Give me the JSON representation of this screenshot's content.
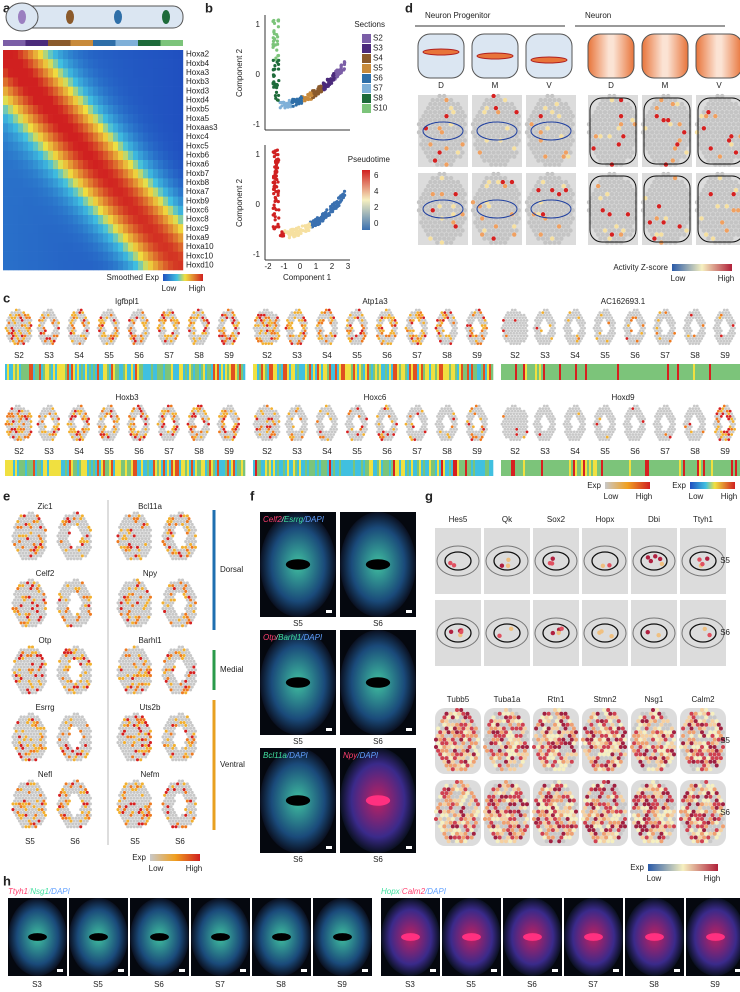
{
  "a": {
    "label": "a",
    "genes": [
      "Hoxa2",
      "Hoxb4",
      "Hoxa3",
      "Hoxb3",
      "Hoxd3",
      "Hoxd4",
      "Hoxb5",
      "Hoxa5",
      "Hoxaas3",
      "Hoxc4",
      "Hoxc5",
      "Hoxb6",
      "Hoxa6",
      "Hoxb7",
      "Hoxb8",
      "Hoxa7",
      "Hoxb9",
      "Hoxc6",
      "Hoxc8",
      "Hoxc9",
      "Hoxa9",
      "Hoxa10",
      "Hoxc10",
      "Hoxd10"
    ],
    "legend": {
      "title": "Smoothed Exp",
      "low": "Low",
      "high": "High"
    }
  },
  "b": {
    "label": "b",
    "y_label": "Component 2",
    "x_label": "Component 1",
    "xticks": [
      "-2",
      "-1",
      "0",
      "1",
      "2",
      "3"
    ],
    "yticks": [
      "1",
      "0",
      "-1"
    ],
    "sections_title": "Sections",
    "sections": [
      {
        "name": "S2",
        "color": "#7b5ea7"
      },
      {
        "name": "S3",
        "color": "#4b2a7b"
      },
      {
        "name": "S4",
        "color": "#8b5a2b"
      },
      {
        "name": "S5",
        "color": "#c88a3a"
      },
      {
        "name": "S6",
        "color": "#2f6fa8"
      },
      {
        "name": "S7",
        "color": "#7fb0d8"
      },
      {
        "name": "S8",
        "color": "#1e6b3a"
      },
      {
        "name": "S10",
        "color": "#7cc47a"
      }
    ],
    "pseudotime_title": "Pseudotime",
    "pseudotime_ticks": [
      "6",
      "4",
      "2",
      "0"
    ]
  },
  "c": {
    "label": "c",
    "genes": [
      "Igfbpl1",
      "Atp1a3",
      "AC162693.1",
      "Hoxb3",
      "Hoxc6",
      "Hoxd9"
    ],
    "sections": [
      "S2",
      "S3",
      "S4",
      "S5",
      "S6",
      "S7",
      "S8",
      "S9"
    ],
    "legend1": {
      "title": "Exp",
      "low": "Low",
      "high": "High"
    },
    "legend2": {
      "title": "Exp",
      "low": "Low",
      "high": "High"
    }
  },
  "d": {
    "label": "d",
    "groups": [
      "Neuron Progenitor",
      "Neuron"
    ],
    "regions": [
      "D",
      "M",
      "V",
      "D",
      "M",
      "V"
    ],
    "legend": {
      "title": "Activity Z-score",
      "low": "Low",
      "high": "High"
    }
  },
  "e": {
    "label": "e",
    "genes": [
      [
        "Zic1",
        "Bcl11a"
      ],
      [
        "Celf2",
        "Npy"
      ],
      [
        "Otp",
        "Barhl1"
      ],
      [
        "Esrrg",
        "Uts2b"
      ],
      [
        "Nefl",
        "Nefm"
      ]
    ],
    "regions": [
      "Dorsal",
      "Medial",
      "Ventral"
    ],
    "sections": [
      "S5",
      "S6",
      "S5",
      "S6"
    ],
    "legend": {
      "title": "Exp",
      "low": "Low",
      "high": "High"
    }
  },
  "f": {
    "label": "f",
    "rows": [
      {
        "stain": [
          "Celf2",
          "/",
          "Esrrg",
          "/DAPI"
        ],
        "sections": [
          "S5",
          "S6"
        ]
      },
      {
        "stain": [
          "Otp",
          "/",
          "Barhl1",
          "/DAPI"
        ],
        "sections": [
          "S5",
          "S6"
        ]
      },
      {
        "stain": [
          "Bcl11a",
          "/DAPI"
        ],
        "stain2": [
          "Npy",
          "/DAPI"
        ],
        "sections": [
          "S6",
          "S6"
        ]
      }
    ]
  },
  "g": {
    "label": "g",
    "genes_top": [
      "Hes5",
      "Qk",
      "Sox2",
      "Hopx",
      "Dbi",
      "Ttyh1"
    ],
    "genes_bottom": [
      "Tubb5",
      "Tuba1a",
      "Rtn1",
      "Stmn2",
      "Nsg1",
      "Calm2"
    ],
    "sections": [
      "S5",
      "S6"
    ],
    "legend": {
      "title": "Exp",
      "low": "Low",
      "high": "High"
    }
  },
  "h": {
    "label": "h",
    "stains": [
      [
        "Ttyh1",
        "/",
        "Nsg1",
        "/DAPI"
      ],
      [
        "Hopx",
        "/",
        "Calm2",
        "/DAPI"
      ]
    ],
    "sections": [
      [
        "S3",
        "S5",
        "S6",
        "S7",
        "S8",
        "S9"
      ],
      [
        "S3",
        "S5",
        "S6",
        "S7",
        "S8",
        "S9"
      ]
    ]
  }
}
